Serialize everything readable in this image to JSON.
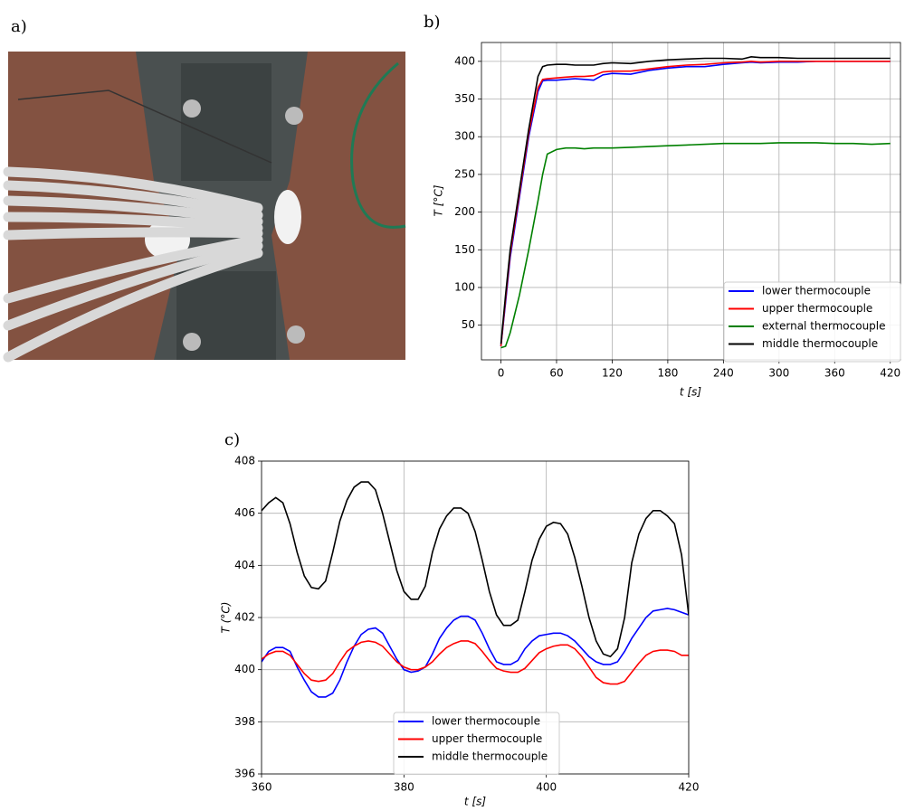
{
  "photo_panel": {
    "label": "a)"
  },
  "chart_data": [
    {
      "type": "line",
      "panel": "b)",
      "xlabel": "t [s]",
      "ylabel": "T [°C]",
      "x": [
        0,
        5,
        10,
        20,
        30,
        40,
        45,
        50,
        60,
        70,
        80,
        90,
        100,
        110,
        120,
        140,
        160,
        180,
        200,
        220,
        240,
        260,
        270,
        280,
        300,
        320,
        340,
        360,
        380,
        400,
        420
      ],
      "series": [
        {
          "name": "lower thermocouple",
          "color": "#0000ff",
          "values": [
            22,
            80,
            140,
            220,
            300,
            360,
            374,
            375,
            375,
            376,
            377,
            376,
            375,
            382,
            384,
            383,
            388,
            391,
            393,
            393,
            396,
            398,
            399,
            398,
            399,
            399,
            400,
            400,
            400,
            400,
            400
          ]
        },
        {
          "name": "upper thermocouple",
          "color": "#ff0000",
          "values": [
            22,
            85,
            145,
            225,
            305,
            365,
            376,
            377,
            378,
            379,
            380,
            380,
            381,
            386,
            387,
            387,
            390,
            393,
            395,
            396,
            398,
            399,
            400,
            399,
            400,
            400,
            400,
            400,
            400,
            400,
            400
          ]
        },
        {
          "name": "external thermocouple",
          "color": "#008000",
          "values": [
            20,
            22,
            40,
            90,
            150,
            215,
            250,
            277,
            283,
            285,
            285,
            284,
            285,
            285,
            285,
            286,
            287,
            288,
            289,
            290,
            291,
            291,
            291,
            291,
            292,
            292,
            292,
            291,
            291,
            290,
            291
          ]
        },
        {
          "name": "middle thermocouple",
          "color": "#000000",
          "values": [
            25,
            90,
            150,
            230,
            310,
            380,
            393,
            395,
            396,
            396,
            395,
            395,
            395,
            397,
            398,
            397,
            400,
            402,
            403,
            404,
            404,
            403,
            406,
            405,
            405,
            404,
            404,
            404,
            404,
            404,
            404
          ]
        }
      ],
      "xlim": [
        -21,
        431
      ],
      "ylim": [
        4,
        425
      ],
      "xticks": [
        0,
        60,
        120,
        180,
        240,
        300,
        360,
        420
      ],
      "yticks": [
        50,
        100,
        150,
        200,
        250,
        300,
        350,
        400
      ],
      "grid": true,
      "legend": "lower right"
    },
    {
      "type": "line",
      "panel": "c)",
      "xlabel": "t [s]",
      "ylabel": "T (°C)",
      "x": [
        360,
        361,
        362,
        363,
        364,
        365,
        366,
        367,
        368,
        369,
        370,
        371,
        372,
        373,
        374,
        375,
        376,
        377,
        378,
        379,
        380,
        381,
        382,
        383,
        384,
        385,
        386,
        387,
        388,
        389,
        390,
        391,
        392,
        393,
        394,
        395,
        396,
        397,
        398,
        399,
        400,
        401,
        402,
        403,
        404,
        405,
        406,
        407,
        408,
        409,
        410,
        411,
        412,
        413,
        414,
        415,
        416,
        417,
        418,
        419,
        420
      ],
      "series": [
        {
          "name": "lower thermocouple",
          "color": "#0000ff",
          "values": [
            400.3,
            400.7,
            400.85,
            400.85,
            400.7,
            400.1,
            399.6,
            399.15,
            398.95,
            398.95,
            399.1,
            399.6,
            400.3,
            400.9,
            401.35,
            401.55,
            401.6,
            401.4,
            400.9,
            400.4,
            400.0,
            399.9,
            399.95,
            400.1,
            400.6,
            401.2,
            401.6,
            401.9,
            402.05,
            402.05,
            401.9,
            401.4,
            400.8,
            400.3,
            400.2,
            400.2,
            400.35,
            400.8,
            401.1,
            401.3,
            401.35,
            401.4,
            401.4,
            401.3,
            401.1,
            400.8,
            400.5,
            400.3,
            400.2,
            400.2,
            400.3,
            400.7,
            401.2,
            401.6,
            402.0,
            402.25,
            402.3,
            402.35,
            402.3,
            402.2,
            402.1
          ]
        },
        {
          "name": "upper thermocouple",
          "color": "#ff0000",
          "values": [
            400.4,
            400.6,
            400.7,
            400.7,
            400.55,
            400.2,
            399.85,
            399.6,
            399.55,
            399.6,
            399.85,
            400.3,
            400.7,
            400.9,
            401.05,
            401.1,
            401.05,
            400.9,
            400.6,
            400.3,
            400.1,
            400.0,
            400.0,
            400.1,
            400.3,
            400.6,
            400.85,
            401.0,
            401.1,
            401.1,
            401.0,
            400.7,
            400.35,
            400.05,
            399.95,
            399.9,
            399.9,
            400.05,
            400.35,
            400.65,
            400.8,
            400.9,
            400.95,
            400.95,
            400.8,
            400.5,
            400.1,
            399.7,
            399.5,
            399.45,
            399.45,
            399.55,
            399.9,
            400.25,
            400.55,
            400.7,
            400.75,
            400.75,
            400.7,
            400.55,
            400.55
          ]
        },
        {
          "name": "middle thermocouple",
          "color": "#000000",
          "values": [
            406.1,
            406.4,
            406.6,
            406.4,
            405.6,
            404.5,
            403.6,
            403.15,
            403.1,
            403.4,
            404.5,
            405.7,
            406.5,
            407.0,
            407.2,
            407.2,
            406.9,
            406.0,
            404.9,
            403.8,
            403.0,
            402.7,
            402.7,
            403.2,
            404.5,
            405.4,
            405.9,
            406.2,
            406.2,
            406.0,
            405.3,
            404.2,
            403.0,
            402.1,
            401.7,
            401.7,
            401.9,
            403.0,
            404.2,
            405.0,
            405.5,
            405.65,
            405.6,
            405.2,
            404.3,
            403.2,
            402.0,
            401.1,
            400.6,
            400.5,
            400.8,
            402.0,
            404.1,
            405.2,
            405.8,
            406.1,
            406.1,
            405.9,
            405.6,
            404.4,
            402.1
          ]
        }
      ],
      "xlim": [
        360,
        420
      ],
      "ylim": [
        396,
        408
      ],
      "xticks": [
        360,
        380,
        400,
        420
      ],
      "yticks": [
        396,
        398,
        400,
        402,
        404,
        406,
        408
      ],
      "grid": true,
      "legend": "lower center"
    }
  ]
}
